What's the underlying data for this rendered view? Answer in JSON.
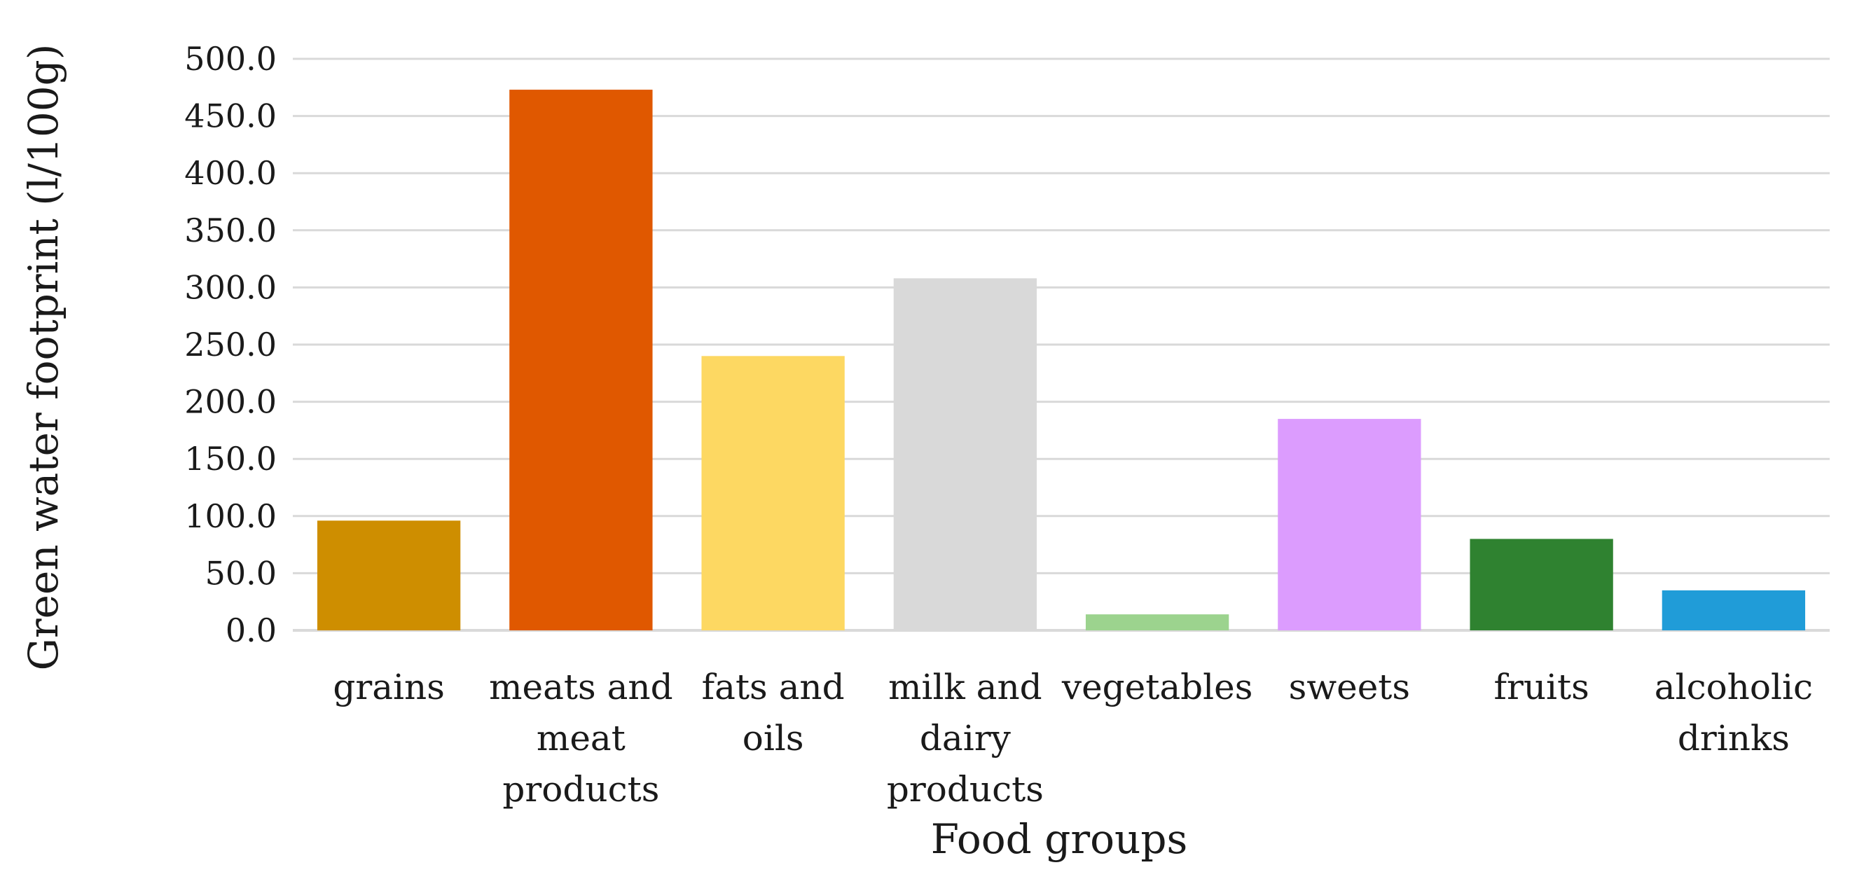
{
  "chart_data": {
    "type": "bar",
    "title": "",
    "xlabel": "Food groups",
    "ylabel": "Green water footprint (l/100g)",
    "categories": [
      [
        "grains"
      ],
      [
        "meats and",
        "meat",
        "products"
      ],
      [
        "fats and",
        "oils"
      ],
      [
        "milk and",
        "dairy",
        "products"
      ],
      [
        "vegetables"
      ],
      [
        "sweets"
      ],
      [
        "fruits"
      ],
      [
        "alcoholic",
        "drinks"
      ]
    ],
    "values": [
      96.0,
      473.0,
      240.0,
      308.0,
      14.0,
      185.0,
      80.0,
      35.0
    ],
    "colors": [
      "#CE8E00",
      "#E05800",
      "#FDD862",
      "#D9D9D9",
      "#9CD38E",
      "#DC9CFE",
      "#2F8230",
      "#209CD8"
    ],
    "ylim": [
      0,
      500
    ],
    "yticks": [
      "0.0",
      "50.0",
      "100.0",
      "150.0",
      "200.0",
      "250.0",
      "300.0",
      "350.0",
      "400.0",
      "450.0",
      "500.0"
    ],
    "grid": true,
    "grid_color": "#d9d9d9"
  }
}
